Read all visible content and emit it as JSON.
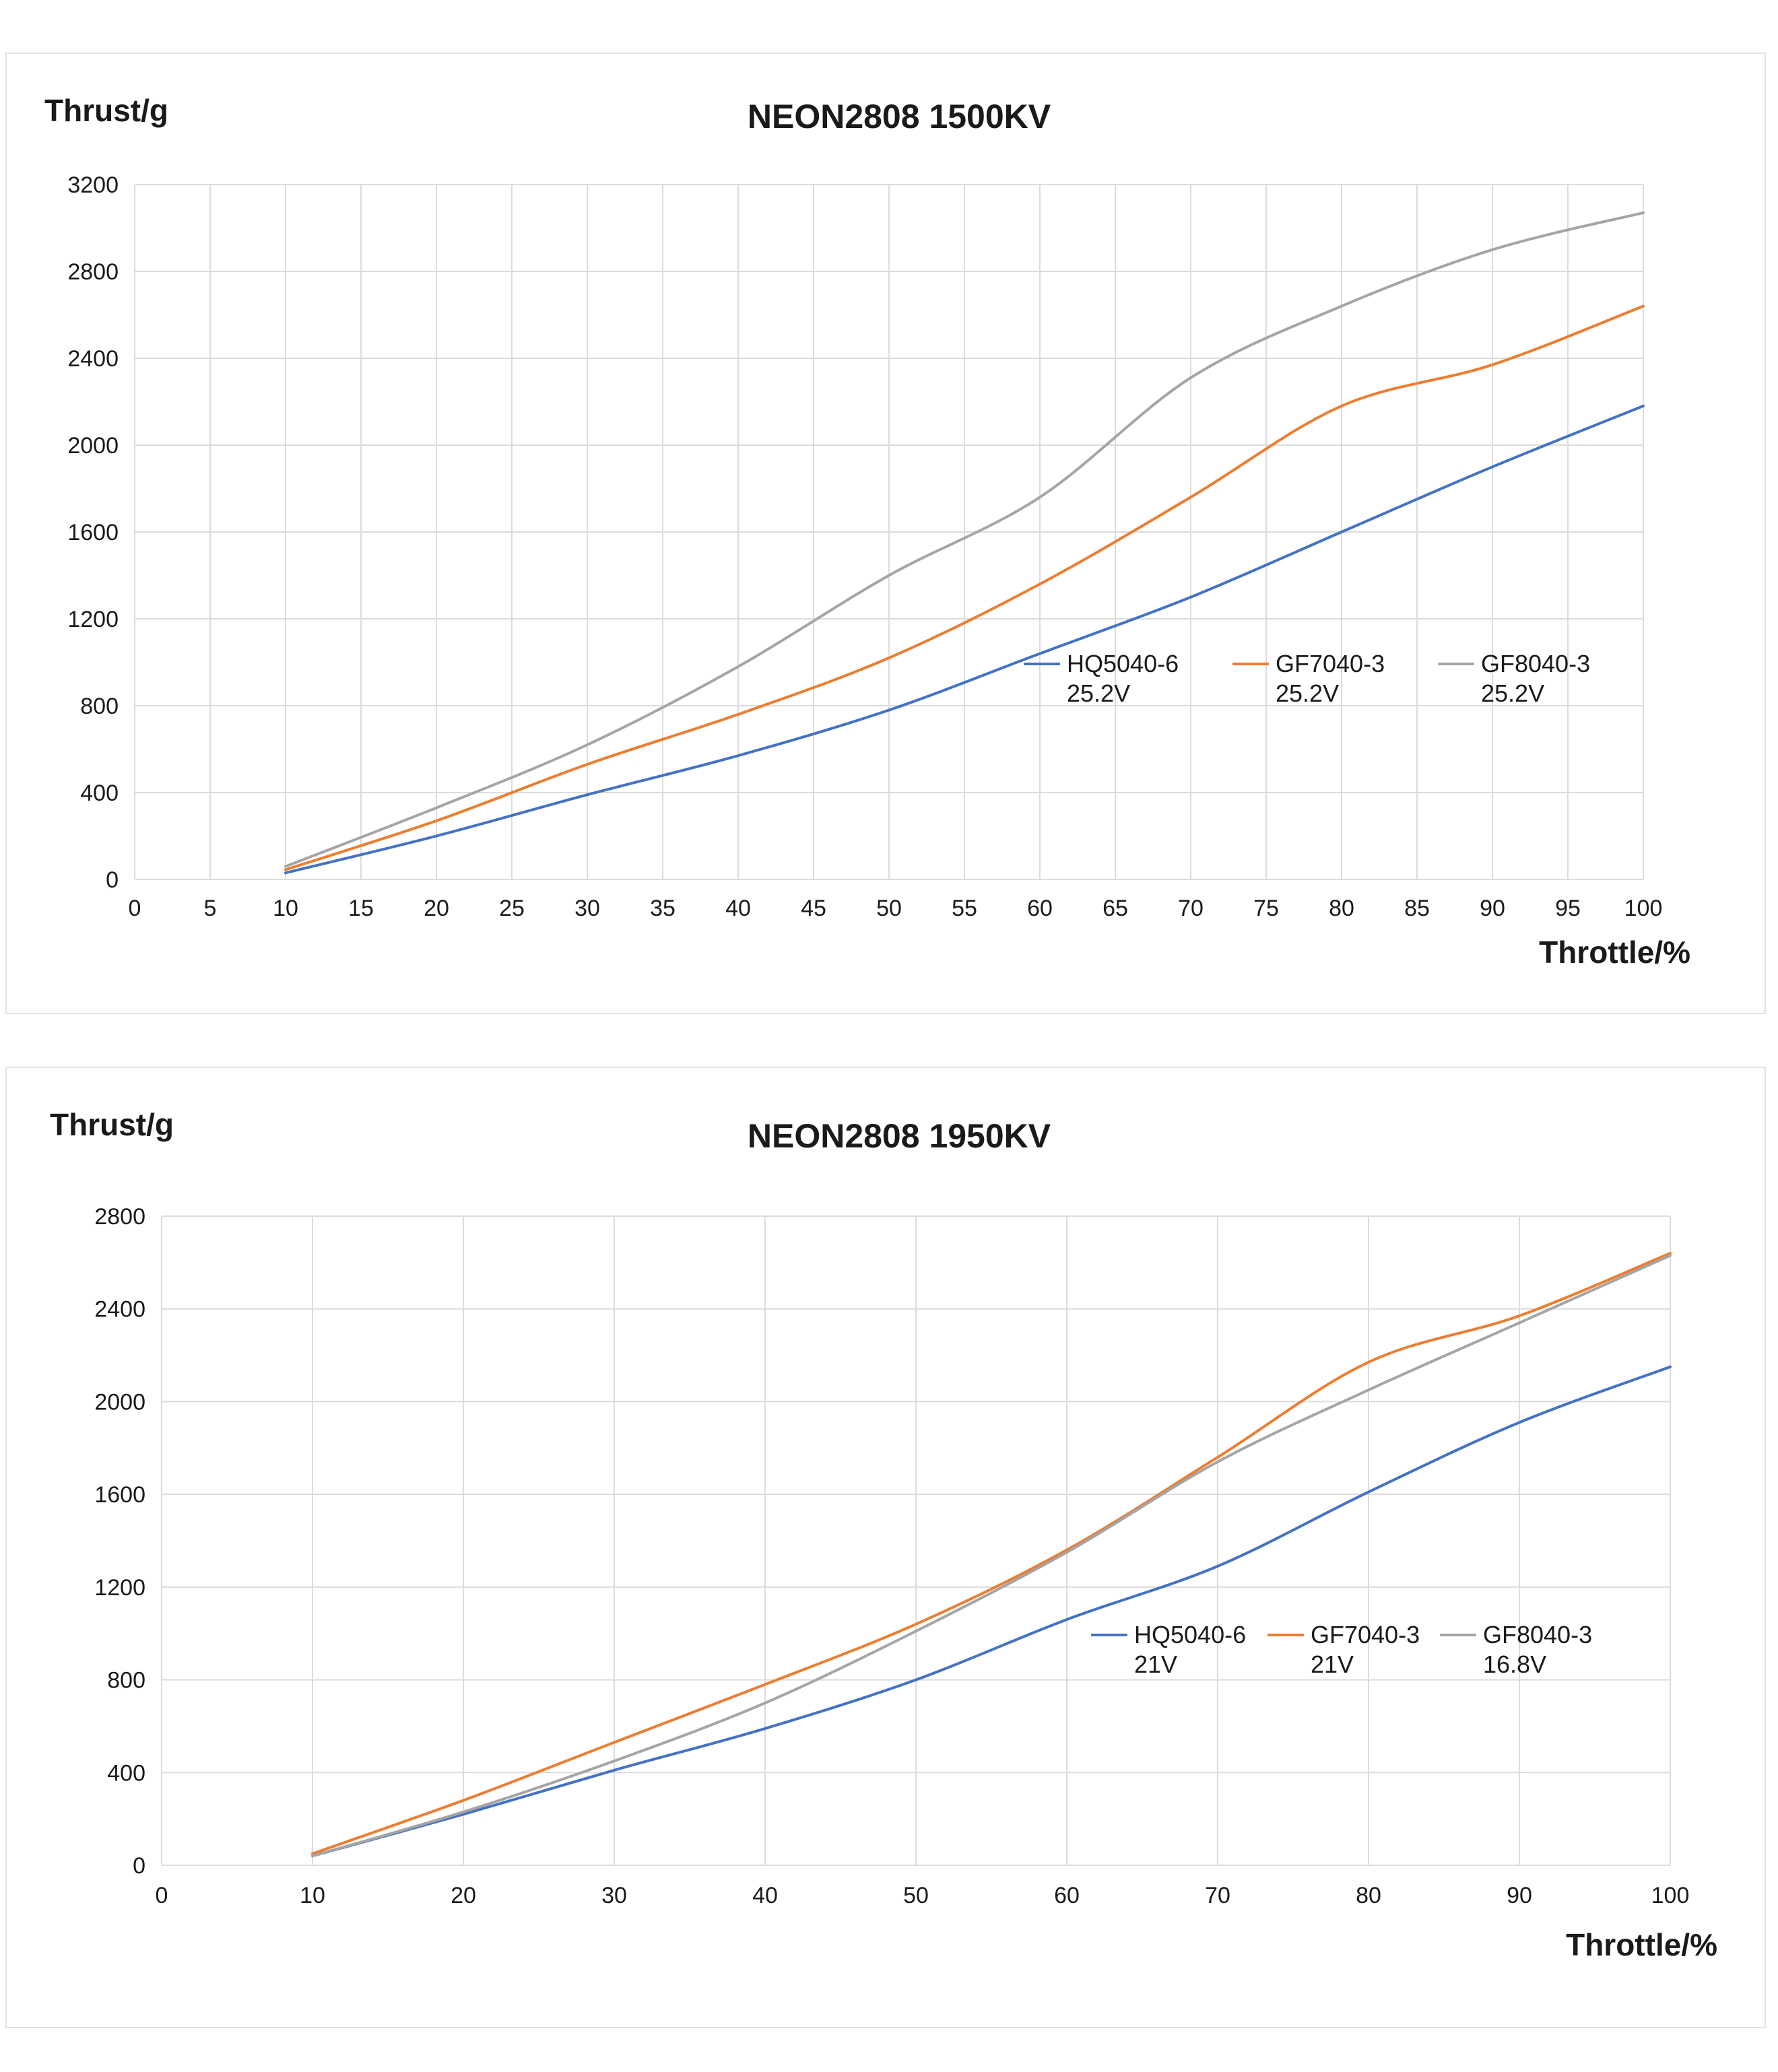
{
  "chart_data": [
    {
      "type": "line",
      "title": "NEON2808 1500KV",
      "xlabel": "Throttle/%",
      "ylabel": "Thrust/g",
      "xlim": [
        0,
        100
      ],
      "ylim": [
        0,
        3200
      ],
      "xticks": [
        "0",
        "5",
        "10",
        "15",
        "20",
        "25",
        "30",
        "35",
        "40",
        "45",
        "50",
        "55",
        "60",
        "65",
        "70",
        "75",
        "80",
        "85",
        "90",
        "95",
        "100"
      ],
      "yticks": [
        "0",
        "400",
        "800",
        "1200",
        "1600",
        "2000",
        "2400",
        "2800",
        "3200"
      ],
      "grid": true,
      "legend_position": "center-right",
      "x": [
        10,
        20,
        30,
        40,
        50,
        60,
        70,
        80,
        90,
        100
      ],
      "series": [
        {
          "name": "HQ5040-6",
          "sub": "25.2V",
          "color": "#4472c4",
          "values": [
            30,
            200,
            390,
            570,
            780,
            1040,
            1300,
            1600,
            1900,
            2180
          ]
        },
        {
          "name": "GF7040-3",
          "sub": "25.2V",
          "color": "#ed7d31",
          "values": [
            45,
            270,
            530,
            760,
            1020,
            1360,
            1760,
            2180,
            2370,
            2640
          ]
        },
        {
          "name": "GF8040-3",
          "sub": "25.2V",
          "color": "#a5a5a5",
          "values": [
            60,
            330,
            620,
            980,
            1400,
            1760,
            2310,
            2640,
            2900,
            3070
          ]
        }
      ]
    },
    {
      "type": "line",
      "title": "NEON2808 1950KV",
      "xlabel": "Throttle/%",
      "ylabel": "Thrust/g",
      "xlim": [
        0,
        100
      ],
      "ylim": [
        0,
        2800
      ],
      "xticks": [
        "0",
        "10",
        "20",
        "30",
        "40",
        "50",
        "60",
        "70",
        "80",
        "90",
        "100"
      ],
      "yticks": [
        "0",
        "400",
        "800",
        "1200",
        "1600",
        "2000",
        "2400",
        "2800"
      ],
      "grid": true,
      "legend_position": "center-right",
      "x": [
        10,
        20,
        30,
        40,
        50,
        60,
        70,
        80,
        90,
        100
      ],
      "series": [
        {
          "name": "HQ5040-6",
          "sub": "21V",
          "color": "#4472c4",
          "values": [
            40,
            220,
            410,
            590,
            800,
            1060,
            1290,
            1610,
            1910,
            2150
          ]
        },
        {
          "name": "GF7040-3",
          "sub": "21V",
          "color": "#ed7d31",
          "values": [
            50,
            280,
            530,
            780,
            1040,
            1360,
            1760,
            2170,
            2370,
            2640
          ]
        },
        {
          "name": "GF8040-3",
          "sub": "16.8V",
          "color": "#a5a5a5",
          "values": [
            40,
            230,
            450,
            700,
            1010,
            1350,
            1740,
            2050,
            2340,
            2630
          ]
        }
      ]
    }
  ]
}
